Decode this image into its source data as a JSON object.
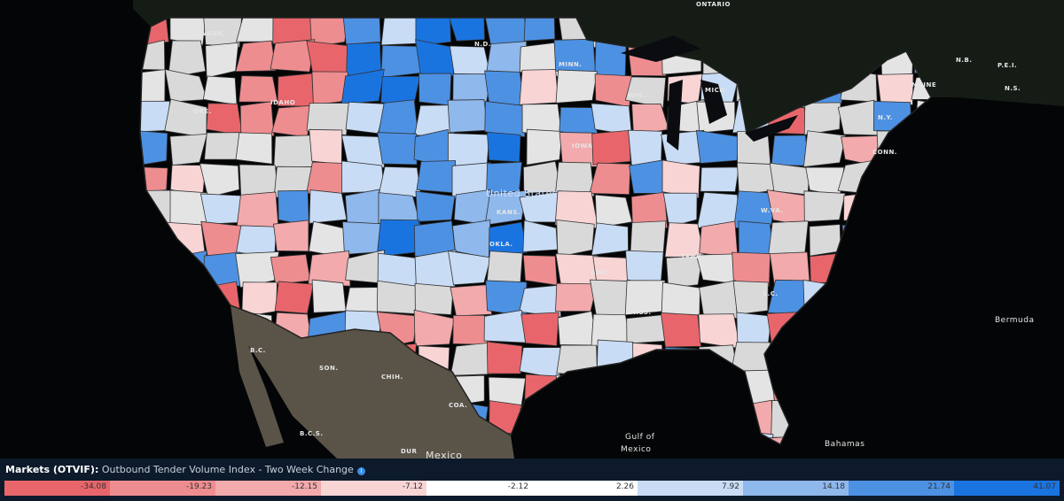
{
  "map": {
    "labels": [
      "ONTARIO",
      "WASH.",
      "N.D.",
      "MINN.",
      "IDAHO",
      "ORE.",
      "WIS.",
      "MICH.",
      "IOWA",
      "United States",
      "KANS.",
      "MAINE",
      "N.B.",
      "P.E.I.",
      "N.S.",
      "N.Y.",
      "CONN.",
      "W.VA.",
      "ARK.",
      "TENN.",
      "MISS.",
      "S.C.",
      "OKLA.",
      "Bermuda",
      "Gulf of",
      "Mexico",
      "Bahamas",
      "SON.",
      "CHIH.",
      "COA.",
      "DUR",
      "B.C.S.",
      "B.C.",
      "Mexico"
    ]
  },
  "legend": {
    "title": "Markets (OTVIF):",
    "subtitle": "Outbound Tender Volume Index - Two Week Change",
    "bins": [
      {
        "value": -34.08,
        "color": "#e8666b"
      },
      {
        "value": -19.23,
        "color": "#ee8d90"
      },
      {
        "value": -12.15,
        "color": "#f2aaac"
      },
      {
        "value": -7.12,
        "color": "#f8d4d5"
      },
      {
        "value": -2.12,
        "color": "#ffffff"
      },
      {
        "value": 2.26,
        "color": "#ffffff"
      },
      {
        "value": 7.92,
        "color": "#c9dcf5"
      },
      {
        "value": 14.18,
        "color": "#8fb8ec"
      },
      {
        "value": 21.74,
        "color": "#4d91e3"
      },
      {
        "value": 41.07,
        "color": "#1a74e0"
      }
    ]
  }
}
